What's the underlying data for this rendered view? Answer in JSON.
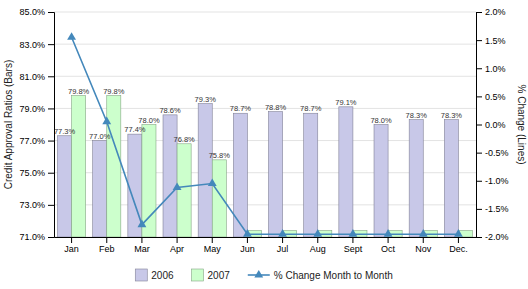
{
  "chart_data": {
    "type": "bar",
    "categories": [
      "Jan",
      "Feb",
      "Mar",
      "Apr",
      "May",
      "Jun",
      "Jul",
      "Aug",
      "Sept",
      "Oct",
      "Nov",
      "Dec."
    ],
    "series": [
      {
        "name": "2006",
        "color": "#c8c8e8",
        "values": [
          77.3,
          77.0,
          77.4,
          78.6,
          79.3,
          78.7,
          78.8,
          78.7,
          79.1,
          78.0,
          78.3,
          78.3
        ],
        "value_labels": [
          "77.3%",
          "77.0%",
          "77.4%",
          "78.6%",
          "79.3%",
          "78.7%",
          "78.8%",
          "78.7%",
          "79.1%",
          "78.0%",
          "78.3%",
          "78.3%"
        ]
      },
      {
        "name": "2007",
        "color": "#ccffcc",
        "values": [
          79.8,
          79.8,
          78.0,
          76.8,
          75.8,
          71.4,
          71.4,
          71.4,
          71.4,
          71.4,
          71.4,
          71.4
        ],
        "value_labels": [
          "79.8%",
          "79.8%",
          "78.0%",
          "76.8%",
          "75.8%",
          null,
          null,
          null,
          null,
          null,
          null,
          null
        ]
      },
      {
        "name": "% Change Month to Month",
        "type": "line",
        "axis": "y2",
        "color": "#4488bb",
        "marker": "triangle",
        "values": [
          1.55,
          0.05,
          -1.78,
          -1.12,
          -1.05,
          -1.95,
          -1.95,
          -1.95,
          -1.95,
          -1.95,
          -1.95,
          -1.95
        ]
      }
    ],
    "ylabel": "Credit Approval Ratios (Bars)",
    "y2label": "% Change (Lines)",
    "ylim": [
      71.0,
      85.0
    ],
    "yticks": [
      {
        "value": 71.0,
        "label": "71.0%"
      },
      {
        "value": 73.0,
        "label": "73.0%"
      },
      {
        "value": 75.0,
        "label": "75.0%"
      },
      {
        "value": 77.0,
        "label": "77.0%"
      },
      {
        "value": 79.0,
        "label": "79.0%"
      },
      {
        "value": 81.0,
        "label": "81.0%"
      },
      {
        "value": 83.0,
        "label": "83.0%"
      },
      {
        "value": 85.0,
        "label": "85.0%"
      }
    ],
    "y2lim": [
      -2.0,
      2.0
    ],
    "y2ticks": [
      {
        "value": -2.0,
        "label": "-2.0%"
      },
      {
        "value": -1.5,
        "label": "-1.5%"
      },
      {
        "value": -1.0,
        "label": "-1.0%"
      },
      {
        "value": -0.5,
        "label": "-0.5%"
      },
      {
        "value": 0.0,
        "label": "0.0%"
      },
      {
        "value": 0.5,
        "label": "0.5%"
      },
      {
        "value": 1.0,
        "label": "1.0%"
      },
      {
        "value": 1.5,
        "label": "1.5%"
      },
      {
        "value": 2.0,
        "label": "2.0%"
      }
    ],
    "grid": true,
    "legend": "bottom",
    "data_labels": true
  }
}
